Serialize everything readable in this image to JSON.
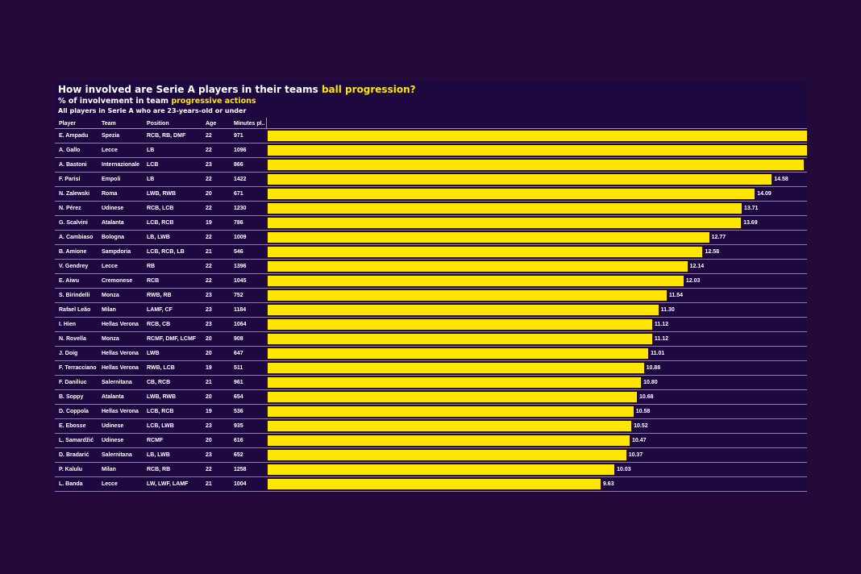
{
  "title": {
    "prefix": "How involved are Serie A players in their teams ",
    "highlight": "ball progression?"
  },
  "subtitle": {
    "prefix": "% of involvement in team ",
    "highlight": "progressive actions"
  },
  "note": "All players in Serie A who are 23-years-old or under",
  "colors": {
    "background": "#230a3b",
    "panel": "#1d0940",
    "bar": "#ffe600",
    "highlight": "#ffe600"
  },
  "chart_data": {
    "type": "bar",
    "orientation": "horizontal",
    "columns": [
      "Player",
      "Team",
      "Position",
      "Age",
      "Minutes pl.."
    ],
    "xlim": [
      0,
      15.6
    ],
    "rows": [
      {
        "player": "E. Ampadu",
        "team": "Spezia",
        "position": "RCB, RB, DMF",
        "age": "22",
        "minutes": "971",
        "value": 15.6,
        "label": ""
      },
      {
        "player": "A. Gallo",
        "team": "Lecce",
        "position": "LB",
        "age": "22",
        "minutes": "1096",
        "value": 15.6,
        "label": ""
      },
      {
        "player": "A. Bastoni",
        "team": "Internazionale",
        "position": "LCB",
        "age": "23",
        "minutes": "866",
        "value": 15.5,
        "label": ""
      },
      {
        "player": "F. Parisi",
        "team": "Empoli",
        "position": "LB",
        "age": "22",
        "minutes": "1422",
        "value": 14.58,
        "label": "14.58"
      },
      {
        "player": "N. Zalewski",
        "team": "Roma",
        "position": "LWB, RWB",
        "age": "20",
        "minutes": "671",
        "value": 14.09,
        "label": "14.09"
      },
      {
        "player": "N. Pérez",
        "team": "Udinese",
        "position": "RCB, LCB",
        "age": "22",
        "minutes": "1230",
        "value": 13.71,
        "label": "13.71"
      },
      {
        "player": "G. Scalvini",
        "team": "Atalanta",
        "position": "LCB, RCB",
        "age": "19",
        "minutes": "786",
        "value": 13.69,
        "label": "13.69"
      },
      {
        "player": "A. Cambiaso",
        "team": "Bologna",
        "position": "LB, LWB",
        "age": "22",
        "minutes": "1009",
        "value": 12.77,
        "label": "12.77"
      },
      {
        "player": "B. Amione",
        "team": "Sampdoria",
        "position": "LCB, RCB, LB",
        "age": "21",
        "minutes": "546",
        "value": 12.58,
        "label": "12.58"
      },
      {
        "player": "V. Gendrey",
        "team": "Lecce",
        "position": "RB",
        "age": "22",
        "minutes": "1396",
        "value": 12.14,
        "label": "12.14"
      },
      {
        "player": "E. Aiwu",
        "team": "Cremonese",
        "position": "RCB",
        "age": "22",
        "minutes": "1045",
        "value": 12.03,
        "label": "12.03"
      },
      {
        "player": "S. Birindelli",
        "team": "Monza",
        "position": "RWB, RB",
        "age": "23",
        "minutes": "752",
        "value": 11.54,
        "label": "11.54"
      },
      {
        "player": "Rafael Leão",
        "team": "Milan",
        "position": "LAMF, CF",
        "age": "23",
        "minutes": "1184",
        "value": 11.3,
        "label": "11.30"
      },
      {
        "player": "I. Hien",
        "team": "Hellas Verona",
        "position": "RCB, CB",
        "age": "23",
        "minutes": "1064",
        "value": 11.12,
        "label": "11.12"
      },
      {
        "player": "N. Rovella",
        "team": "Monza",
        "position": "RCMF, DMF, LCMF",
        "age": "20",
        "minutes": "908",
        "value": 11.12,
        "label": "11.12"
      },
      {
        "player": "J. Doig",
        "team": "Hellas Verona",
        "position": "LWB",
        "age": "20",
        "minutes": "647",
        "value": 11.01,
        "label": "11.01"
      },
      {
        "player": "F. Terracciano",
        "team": "Hellas Verona",
        "position": "RWB, LCB",
        "age": "19",
        "minutes": "511",
        "value": 10.88,
        "label": "10.88"
      },
      {
        "player": "F. Daniliuc",
        "team": "Salernitana",
        "position": "CB, RCB",
        "age": "21",
        "minutes": "961",
        "value": 10.8,
        "label": "10.80"
      },
      {
        "player": "B. Soppy",
        "team": "Atalanta",
        "position": "LWB, RWB",
        "age": "20",
        "minutes": "654",
        "value": 10.68,
        "label": "10.68"
      },
      {
        "player": "D. Coppola",
        "team": "Hellas Verona",
        "position": "LCB, RCB",
        "age": "19",
        "minutes": "536",
        "value": 10.58,
        "label": "10.58"
      },
      {
        "player": "E. Ebosse",
        "team": "Udinese",
        "position": "LCB, LWB",
        "age": "23",
        "minutes": "935",
        "value": 10.52,
        "label": "10.52"
      },
      {
        "player": "L. Samardžić",
        "team": "Udinese",
        "position": "RCMF",
        "age": "20",
        "minutes": "616",
        "value": 10.47,
        "label": "10.47"
      },
      {
        "player": "D. Bradarić",
        "team": "Salernitana",
        "position": "LB, LWB",
        "age": "23",
        "minutes": "652",
        "value": 10.37,
        "label": "10.37"
      },
      {
        "player": "P. Kalulu",
        "team": "Milan",
        "position": "RCB, RB",
        "age": "22",
        "minutes": "1258",
        "value": 10.03,
        "label": "10.03"
      },
      {
        "player": "L. Banda",
        "team": "Lecce",
        "position": "LW, LWF, LAMF",
        "age": "21",
        "minutes": "1004",
        "value": 9.63,
        "label": "9.63"
      }
    ]
  }
}
